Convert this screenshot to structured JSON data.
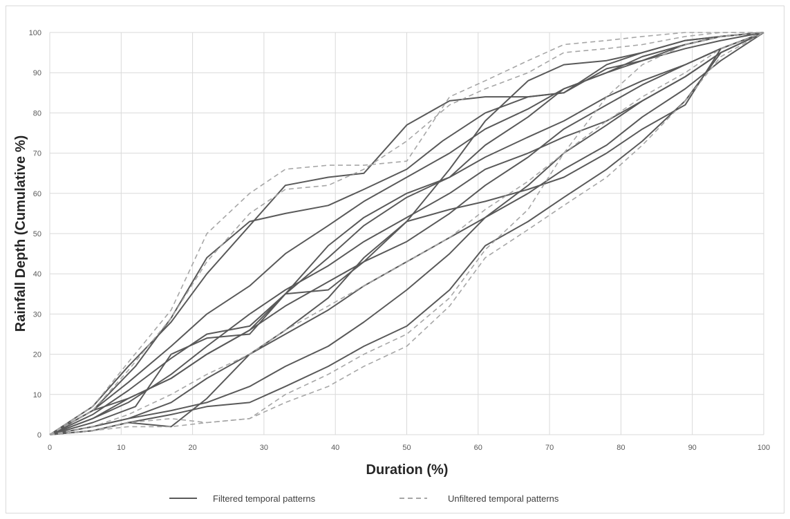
{
  "chart_data": {
    "type": "line",
    "xlabel": "Duration (%)",
    "ylabel": "Rainfall Depth (Cumulative %)",
    "xlim": [
      0,
      100
    ],
    "ylim": [
      0,
      100
    ],
    "xticks": [
      0,
      10,
      20,
      30,
      40,
      50,
      60,
      70,
      80,
      90,
      100
    ],
    "yticks": [
      0,
      10,
      20,
      30,
      40,
      50,
      60,
      70,
      80,
      90,
      100
    ],
    "grid": true,
    "legend": {
      "position": "bottom",
      "entries": [
        {
          "label": "Filtered temporal patterns",
          "style": "solid",
          "color": "#595959"
        },
        {
          "label": "Unfiltered temporal patterns",
          "style": "dashed",
          "color": "#a6a6a6"
        }
      ]
    },
    "series": [
      {
        "group": "filtered",
        "x": [
          0,
          6,
          11,
          17,
          22,
          28,
          33,
          39,
          44,
          50,
          56,
          61,
          67,
          72,
          78,
          83,
          89,
          94,
          100
        ],
        "y": [
          0,
          6,
          13,
          22,
          30,
          37,
          45,
          52,
          58,
          64,
          70,
          76,
          81,
          86,
          90,
          93,
          96,
          98,
          100
        ]
      },
      {
        "group": "filtered",
        "x": [
          0,
          6,
          11,
          17,
          22,
          28,
          33,
          39,
          44,
          50,
          56,
          61,
          67,
          72,
          78,
          83,
          89,
          94,
          100
        ],
        "y": [
          0,
          4,
          9,
          14,
          20,
          26,
          32,
          38,
          43,
          48,
          55,
          62,
          69,
          76,
          82,
          87,
          92,
          96,
          100
        ]
      },
      {
        "group": "filtered",
        "x": [
          0,
          6,
          11,
          17,
          22,
          28,
          33,
          39,
          44,
          50,
          56,
          61,
          67,
          72,
          78,
          83,
          89,
          94,
          100
        ],
        "y": [
          0,
          2,
          4,
          6,
          8,
          12,
          17,
          22,
          28,
          36,
          45,
          54,
          62,
          70,
          77,
          83,
          89,
          95,
          100
        ]
      },
      {
        "group": "filtered",
        "x": [
          0,
          6,
          12,
          17,
          22,
          28,
          33,
          39,
          44,
          50,
          55,
          61,
          67,
          72,
          78,
          83,
          89,
          94,
          100
        ],
        "y": [
          0,
          6,
          17,
          29,
          44,
          53,
          55,
          57,
          61,
          66,
          73,
          80,
          84,
          85,
          92,
          95,
          98,
          99,
          100
        ]
      },
      {
        "group": "filtered",
        "x": [
          0,
          6,
          11,
          17,
          22,
          28,
          33,
          39,
          44,
          50,
          56,
          61,
          67,
          72,
          78,
          83,
          89,
          94,
          100
        ],
        "y": [
          0,
          4,
          8,
          15,
          22,
          30,
          36,
          42,
          48,
          54,
          60,
          66,
          70,
          74,
          78,
          83,
          89,
          95,
          100
        ]
      },
      {
        "group": "filtered",
        "x": [
          0,
          6,
          11,
          17,
          22,
          28,
          33,
          39,
          44,
          50,
          56,
          61,
          67,
          72,
          78,
          83,
          89,
          94,
          100
        ],
        "y": [
          0,
          6,
          9,
          14,
          20,
          26,
          35,
          44,
          52,
          59,
          64,
          69,
          74,
          78,
          84,
          88,
          92,
          96,
          100
        ]
      },
      {
        "group": "filtered",
        "x": [
          0,
          6,
          12,
          17,
          22,
          28,
          33,
          39,
          44,
          50,
          56,
          61,
          67,
          72,
          78,
          83,
          89,
          94,
          100
        ],
        "y": [
          0,
          3,
          7,
          20,
          24,
          25,
          35,
          36,
          43,
          53,
          56,
          58,
          61,
          64,
          70,
          76,
          82,
          96,
          100
        ]
      },
      {
        "group": "filtered",
        "x": [
          0,
          6,
          11,
          17,
          22,
          28,
          33,
          39,
          44,
          50,
          56,
          61,
          67,
          72,
          78,
          83,
          89,
          94,
          100
        ],
        "y": [
          0,
          2,
          4,
          8,
          14,
          20,
          25,
          31,
          37,
          43,
          49,
          54,
          60,
          66,
          72,
          79,
          86,
          93,
          100
        ]
      },
      {
        "group": "filtered",
        "x": [
          0,
          6,
          11,
          17,
          22,
          28,
          33,
          39,
          44,
          50,
          56,
          61,
          67,
          72,
          78,
          83,
          89,
          94,
          100
        ],
        "y": [
          0,
          1,
          3,
          5,
          7,
          8,
          12,
          17,
          22,
          27,
          36,
          47,
          53,
          59,
          66,
          73,
          83,
          95,
          100
        ]
      },
      {
        "group": "filtered",
        "x": [
          0,
          6,
          11,
          17,
          22,
          28,
          33,
          39,
          44,
          50,
          56,
          61,
          67,
          72,
          78,
          83,
          89,
          94,
          100
        ],
        "y": [
          0,
          7,
          17,
          28,
          40,
          52,
          62,
          64,
          65,
          77,
          83,
          84,
          84,
          85,
          91,
          93,
          97,
          99,
          100
        ]
      },
      {
        "group": "filtered",
        "x": [
          0,
          6,
          11,
          17,
          22,
          28,
          33,
          39,
          44,
          50,
          56,
          61,
          67,
          72,
          78,
          83,
          89,
          94,
          100
        ],
        "y": [
          0,
          5,
          11,
          19,
          25,
          27,
          35,
          47,
          54,
          60,
          64,
          72,
          79,
          86,
          90,
          94,
          97,
          99,
          100
        ]
      },
      {
        "group": "filtered",
        "x": [
          0,
          6,
          11,
          17,
          22,
          28,
          33,
          39,
          44,
          50,
          56,
          61,
          67,
          72,
          78,
          83,
          89,
          94,
          100
        ],
        "y": [
          0,
          1,
          3,
          2,
          9,
          20,
          26,
          34,
          44,
          53,
          66,
          78,
          88,
          92,
          93,
          95,
          98,
          99,
          100
        ]
      },
      {
        "group": "unfiltered",
        "x": [
          0,
          6,
          11,
          17,
          22,
          28,
          33,
          39,
          44,
          50,
          56,
          61,
          67,
          72,
          78,
          83,
          89,
          94,
          100
        ],
        "y": [
          0,
          7,
          18,
          31,
          50,
          60,
          66,
          67,
          67,
          68,
          84,
          88,
          93,
          97,
          98,
          99,
          100,
          100,
          100
        ]
      },
      {
        "group": "unfiltered",
        "x": [
          0,
          6,
          11,
          17,
          22,
          28,
          33,
          39,
          44,
          50,
          56,
          61,
          67,
          72,
          78,
          83,
          89,
          94,
          100
        ],
        "y": [
          0,
          6,
          16,
          29,
          43,
          55,
          61,
          62,
          66,
          73,
          82,
          86,
          90,
          95,
          96,
          97,
          99,
          100,
          100
        ]
      },
      {
        "group": "unfiltered",
        "x": [
          0,
          6,
          11,
          17,
          22,
          28,
          33,
          39,
          44,
          50,
          56,
          61,
          67,
          72,
          78,
          83,
          89,
          94,
          100
        ],
        "y": [
          0,
          1,
          2,
          2,
          3,
          4,
          8,
          12,
          17,
          22,
          32,
          44,
          51,
          57,
          64,
          72,
          83,
          94,
          100
        ]
      },
      {
        "group": "unfiltered",
        "x": [
          0,
          6,
          11,
          17,
          22,
          28,
          33,
          39,
          44,
          50,
          56,
          61,
          67,
          72,
          78,
          83,
          89,
          94,
          100
        ],
        "y": [
          0,
          1,
          3,
          4,
          3,
          4,
          10,
          15,
          20,
          25,
          34,
          46,
          56,
          70,
          84,
          92,
          97,
          99,
          100
        ]
      },
      {
        "group": "unfiltered",
        "x": [
          0,
          6,
          11,
          17,
          22,
          28,
          33,
          39,
          44,
          50,
          56,
          61,
          67,
          72,
          78,
          83,
          89,
          94,
          100
        ],
        "y": [
          0,
          2,
          5,
          10,
          15,
          20,
          26,
          32,
          37,
          43,
          49,
          56,
          63,
          70,
          78,
          84,
          90,
          96,
          100
        ]
      }
    ]
  }
}
